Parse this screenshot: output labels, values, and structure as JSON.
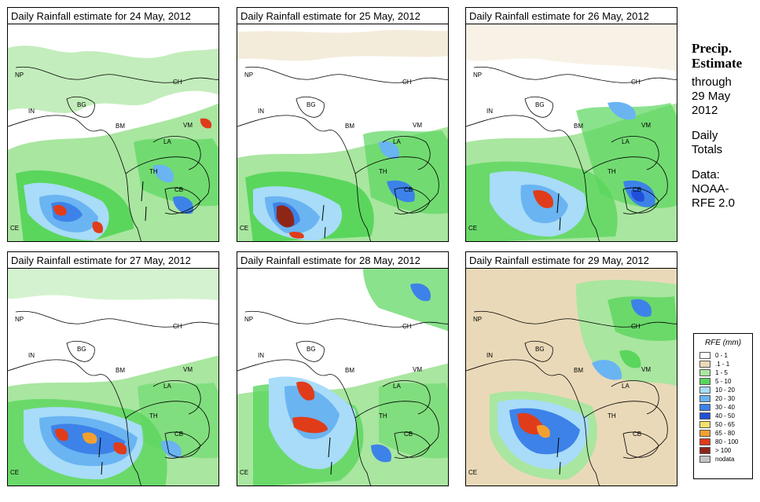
{
  "panels": [
    {
      "title": "Daily Rainfall estimate for  24 May, 2012"
    },
    {
      "title": "Daily Rainfall estimate for  25 May, 2012"
    },
    {
      "title": "Daily Rainfall estimate for  26 May, 2012"
    },
    {
      "title": "Daily Rainfall estimate for  27 May, 2012"
    },
    {
      "title": "Daily Rainfall estimate for  28 May, 2012"
    },
    {
      "title": "Daily Rainfall estimate for  29 May, 2012"
    }
  ],
  "country_labels": [
    "NP",
    "CH",
    "IN",
    "BG",
    "BM",
    "VM",
    "LA",
    "TH",
    "CB",
    "CE"
  ],
  "side": {
    "title_line1": "Precip.",
    "title_line2": "Estimate",
    "through": "through",
    "date_line1": "29 May",
    "date_line2": "2012",
    "daily": "Daily",
    "totals": "Totals",
    "data_label": "Data:",
    "data_src1": "NOAA-",
    "data_src2": "RFE 2.0"
  },
  "legend": {
    "title": "RFE (mm)",
    "items": [
      {
        "label": "0 - 1",
        "color": "#ffffff"
      },
      {
        "label": ".1 - 1",
        "color": "#ead9b8"
      },
      {
        "label": "1 - 5",
        "color": "#a9e6a0"
      },
      {
        "label": "5 - 10",
        "color": "#5ad65c"
      },
      {
        "label": "10 - 20",
        "color": "#a8dcf8"
      },
      {
        "label": "20 - 30",
        "color": "#6ab4f2"
      },
      {
        "label": "30 - 40",
        "color": "#3d82e8"
      },
      {
        "label": "40 - 50",
        "color": "#2050d8"
      },
      {
        "label": "50 - 65",
        "color": "#f6e06c"
      },
      {
        "label": "65 - 80",
        "color": "#f4a030"
      },
      {
        "label": "80 - 100",
        "color": "#e03c1a"
      },
      {
        "label": "> 100",
        "color": "#8e2618"
      },
      {
        "label": "nodata",
        "color": "#c4c4c4"
      }
    ]
  }
}
